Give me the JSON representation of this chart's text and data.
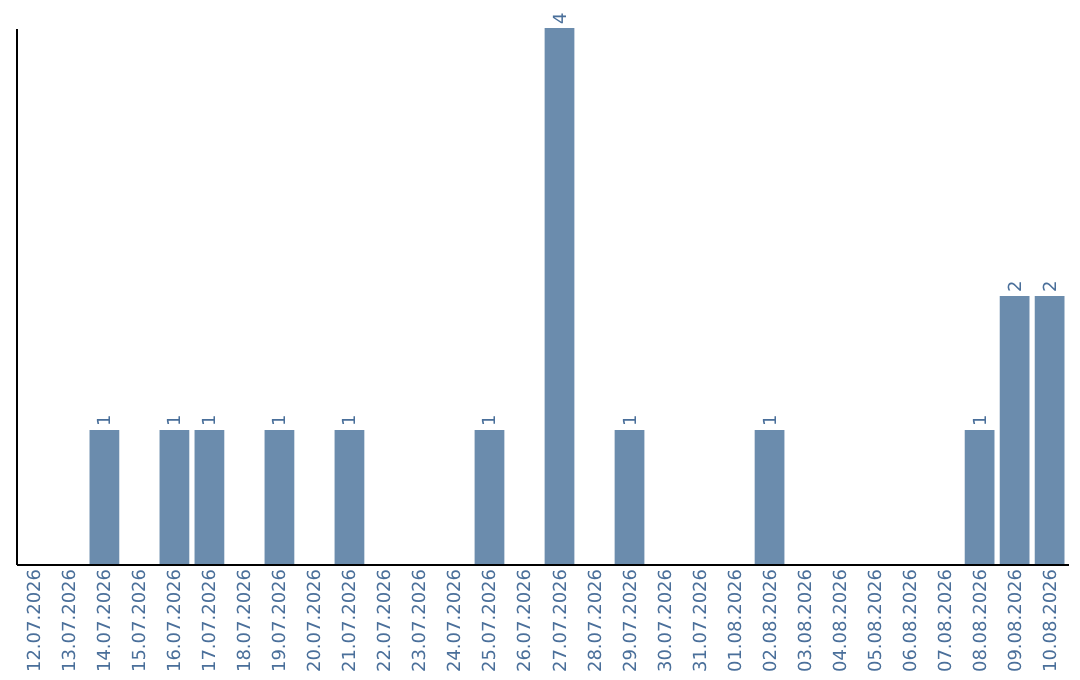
{
  "chart_data": {
    "type": "bar",
    "categories": [
      "12.07.2026",
      "13.07.2026",
      "14.07.2026",
      "15.07.2026",
      "16.07.2026",
      "17.07.2026",
      "18.07.2026",
      "19.07.2026",
      "20.07.2026",
      "21.07.2026",
      "22.07.2026",
      "23.07.2026",
      "24.07.2026",
      "25.07.2026",
      "26.07.2026",
      "27.07.2026",
      "28.07.2026",
      "29.07.2026",
      "30.07.2026",
      "31.07.2026",
      "01.08.2026",
      "02.08.2026",
      "03.08.2026",
      "04.08.2026",
      "05.08.2026",
      "06.08.2026",
      "07.08.2026",
      "08.08.2026",
      "09.08.2026",
      "10.08.2026"
    ],
    "values": [
      null,
      null,
      1,
      null,
      1,
      1,
      null,
      1,
      null,
      1,
      null,
      null,
      null,
      1,
      null,
      4,
      null,
      1,
      null,
      null,
      null,
      1,
      null,
      null,
      null,
      null,
      null,
      1,
      2,
      2
    ],
    "color": "#6b8cad",
    "data_labels": true,
    "grid": false,
    "tick_labels": "x"
  }
}
